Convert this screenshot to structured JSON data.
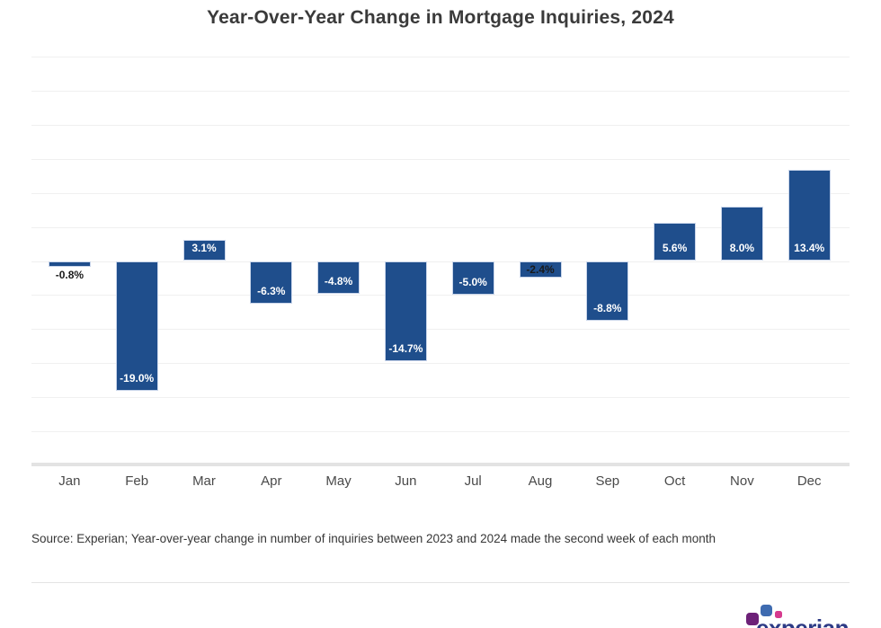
{
  "title": "Year-Over-Year Change in Mortgage Inquiries, 2024",
  "source_note": "Source: Experian; Year-over-year change in number of inquiries between 2023 and 2024 made the second week of each month",
  "logo": {
    "text": "experian"
  },
  "colors": {
    "bar": "#1f4e8c",
    "bar_border": "#c9d5ea",
    "label_white": "#ffffff",
    "label_dark": "#1a1a1a",
    "gridline": "#f0f0f0",
    "axis_line": "#e3e3e3",
    "logo_purple": "#6d2178",
    "logo_blue": "#3e6bb0",
    "logo_pink": "#d63a8e",
    "logo_text": "#2d3a85"
  },
  "chart_data": {
    "type": "bar",
    "title": "Year-Over-Year Change in Mortgage Inquiries, 2024",
    "xlabel": "",
    "ylabel": "",
    "categories": [
      "Jan",
      "Feb",
      "Mar",
      "Apr",
      "May",
      "Jun",
      "Jul",
      "Aug",
      "Sep",
      "Oct",
      "Nov",
      "Dec"
    ],
    "values": [
      -0.8,
      -19.0,
      3.1,
      -6.3,
      -4.8,
      -14.7,
      -5.0,
      -2.4,
      -8.8,
      5.6,
      8.0,
      13.4
    ],
    "data_labels": [
      "-0.8%",
      "-19.0%",
      "3.1%",
      "-6.3%",
      "-4.8%",
      "-14.7%",
      "-5.0%",
      "-2.4%",
      "-8.8%",
      "5.6%",
      "8.0%",
      "13.4%"
    ],
    "label_styles": [
      "below-dark",
      "inside-white",
      "inside-white",
      "inside-white",
      "inside-white",
      "inside-white",
      "inside-white",
      "center-dark",
      "inside-white",
      "inside-white",
      "inside-white",
      "inside-white"
    ],
    "ylim": [
      -30,
      30
    ],
    "gridline_step": 5,
    "grid": true,
    "y_axis_labels_visible": false,
    "legend": "none"
  }
}
